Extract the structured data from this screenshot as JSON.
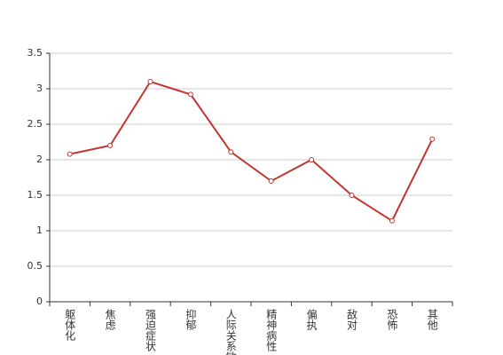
{
  "chart_data": {
    "type": "line",
    "categories": [
      "躯体化",
      "焦虑",
      "强迫症状",
      "抑郁",
      "人际关系敏感",
      "精神病性",
      "偏执",
      "敌对",
      "恐怖",
      "其他"
    ],
    "series": [
      {
        "color": "#c23531",
        "values": [
          2.08,
          2.2,
          3.1,
          2.92,
          2.11,
          1.7,
          2.0,
          1.5,
          1.14,
          2.29
        ]
      }
    ],
    "ylim": [
      0,
      3.5
    ],
    "yticks": [
      0,
      0.5,
      1,
      1.5,
      2,
      2.5,
      3,
      3.5
    ],
    "grid": true
  }
}
